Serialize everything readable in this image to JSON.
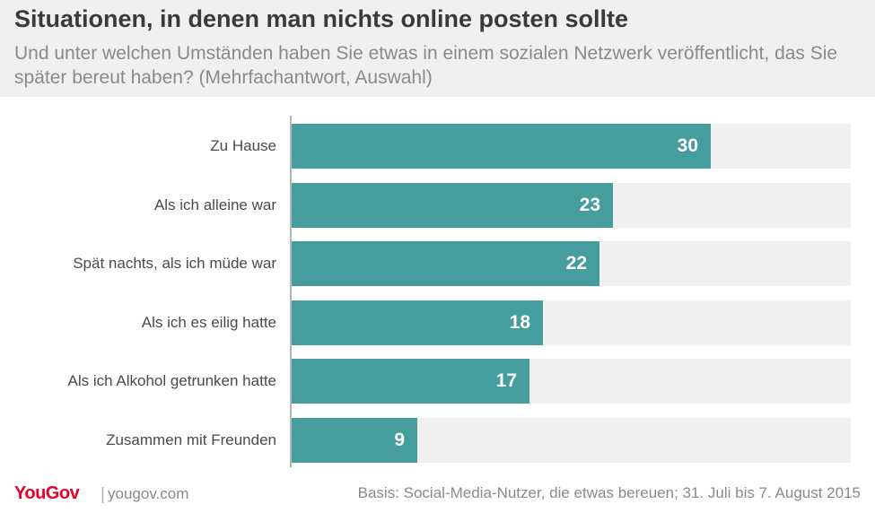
{
  "header": {
    "title": "Situationen, in denen man nichts online posten sollte",
    "subtitle": "Und unter welchen Umständen haben Sie etwas in einem sozialen Netzwerk veröffentlicht, das Sie später bereut haben? (Mehrfachantwort, Auswahl)"
  },
  "footer": {
    "brand": "YouGov",
    "separator": "|",
    "site": "yougov.com",
    "basis": "Basis: Social-Media-Nutzer, die etwas bereuen; 31. Juli bis 7. August 2015"
  },
  "colors": {
    "bar": "#459d9e",
    "track": "#f0f0f0",
    "brand": "#e8002a"
  },
  "chart_data": {
    "type": "bar",
    "orientation": "horizontal",
    "categories": [
      "Zu Hause",
      "Als ich alleine war",
      "Spät nachts, als ich müde war",
      "Als ich es eilig hatte",
      "Als ich Alkohol getrunken hatte",
      "Zusammen mit Freunden"
    ],
    "values": [
      30,
      23,
      22,
      18,
      17,
      9
    ],
    "xlim": [
      0,
      40
    ],
    "grid": false,
    "legend": "none"
  }
}
